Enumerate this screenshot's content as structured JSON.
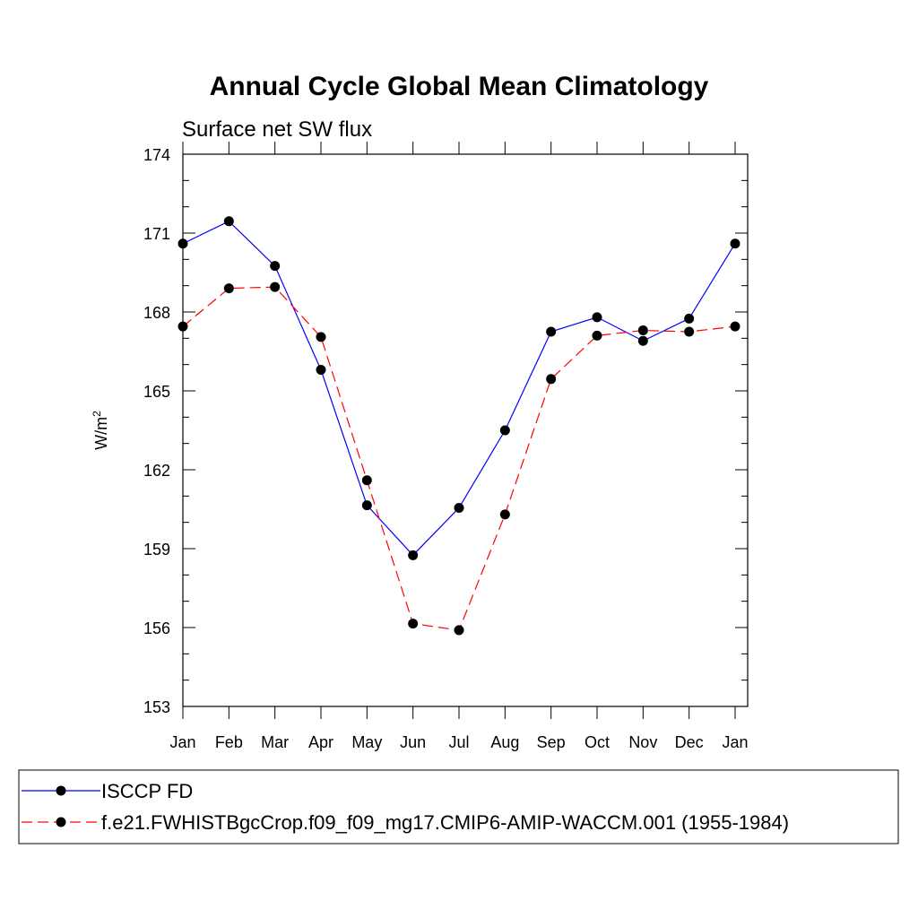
{
  "chart_data": {
    "type": "line",
    "title": "Annual Cycle Global Mean Climatology",
    "subtitle": "Surface net SW flux",
    "ylabel": "W/m",
    "ylabel_superscript": "2",
    "categories": [
      "Jan",
      "Feb",
      "Mar",
      "Apr",
      "May",
      "Jun",
      "Jul",
      "Aug",
      "Sep",
      "Oct",
      "Nov",
      "Dec",
      "Jan"
    ],
    "ylim": [
      153,
      174
    ],
    "yticks": [
      153,
      156,
      159,
      162,
      165,
      168,
      171,
      174
    ],
    "series": [
      {
        "name": "ISCCP FD",
        "color": "#0000ff",
        "dash": "solid",
        "values": [
          170.6,
          171.45,
          169.75,
          165.8,
          160.65,
          158.75,
          160.55,
          163.5,
          167.25,
          167.8,
          166.9,
          167.75,
          170.6
        ]
      },
      {
        "name": "f.e21.FWHISTBgcCrop.f09_f09_mg17.CMIP6-AMIP-WACCM.001 (1955-1984)",
        "color": "#ff0000",
        "dash": "dashed",
        "values": [
          167.45,
          168.9,
          168.95,
          167.05,
          161.6,
          156.15,
          155.9,
          160.3,
          165.45,
          167.1,
          167.3,
          167.25,
          167.45
        ]
      }
    ],
    "legend_placement": "bottom"
  }
}
